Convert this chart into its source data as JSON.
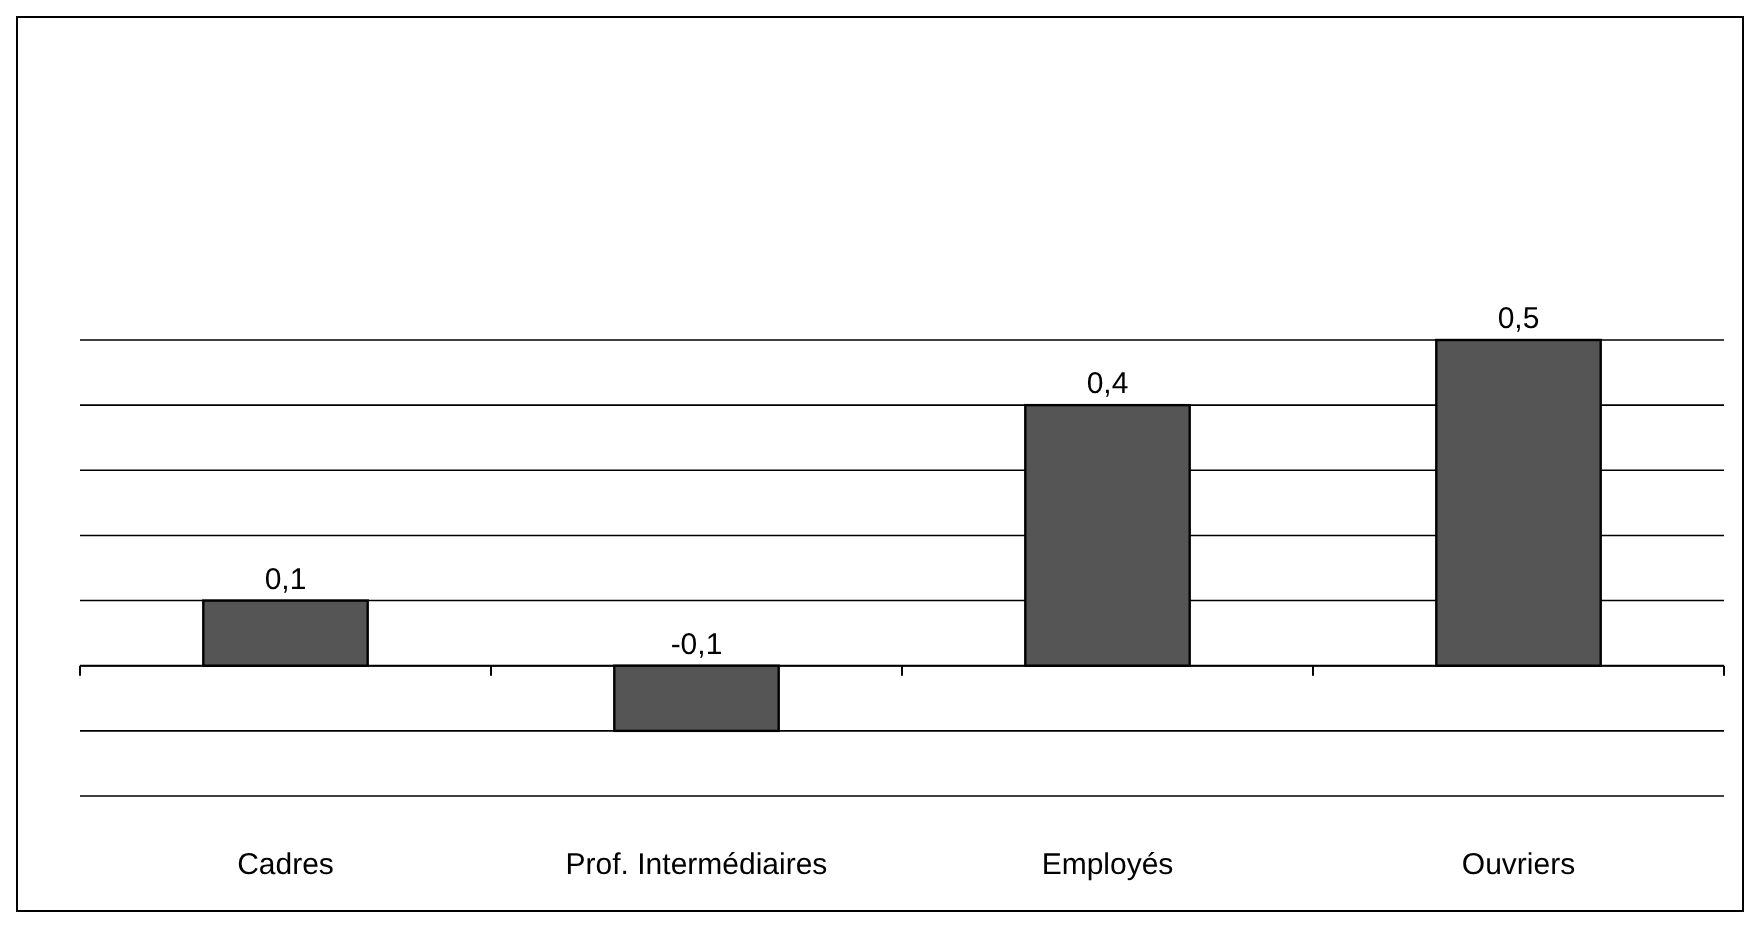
{
  "chart_data": {
    "type": "bar",
    "categories": [
      "Cadres",
      "Prof. Intermédiaires",
      "Employés",
      "Ouvriers"
    ],
    "values": [
      0.1,
      -0.1,
      0.4,
      0.5
    ],
    "color": "#555555",
    "ylim": [
      -0.2,
      0.5
    ],
    "yticks": [
      {
        "value": -0.2,
        "label": null
      },
      {
        "value": -0.1,
        "label": null
      },
      {
        "value": 0,
        "label": null
      },
      {
        "value": 0.1,
        "label": null
      },
      {
        "value": 0.2,
        "label": null
      },
      {
        "value": 0.3,
        "label": null
      },
      {
        "value": 0.4,
        "label": null
      },
      {
        "value": 0.5,
        "label": null
      }
    ],
    "value_labels": [
      "0,1",
      "-0,1",
      "0,4",
      "0,5"
    ],
    "grid": "y",
    "tick_labels": "x"
  }
}
